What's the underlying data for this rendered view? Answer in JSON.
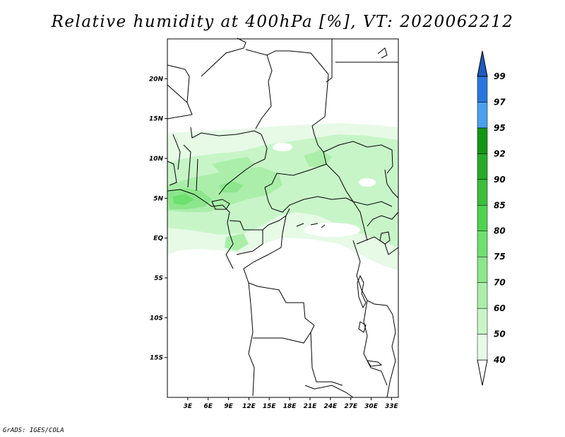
{
  "title": "Relative humidity at 400hPa [%], VT: 2020062212",
  "credit": "GrADS: IGES/COLA",
  "map": {
    "lon_range": [
      0,
      34
    ],
    "lat_range": [
      -20,
      25
    ],
    "lat_ticks": [
      {
        "lat": 20,
        "label": "20N"
      },
      {
        "lat": 15,
        "label": "15N"
      },
      {
        "lat": 10,
        "label": "10N"
      },
      {
        "lat": 5,
        "label": "5N"
      },
      {
        "lat": 0,
        "label": "EQ"
      },
      {
        "lat": -5,
        "label": "5S"
      },
      {
        "lat": -10,
        "label": "10S"
      },
      {
        "lat": -15,
        "label": "15S"
      }
    ],
    "lon_ticks": [
      {
        "lon": 3,
        "label": "3E"
      },
      {
        "lon": 6,
        "label": "6E"
      },
      {
        "lon": 9,
        "label": "9E"
      },
      {
        "lon": 12,
        "label": "12E"
      },
      {
        "lon": 15,
        "label": "15E"
      },
      {
        "lon": 18,
        "label": "18E"
      },
      {
        "lon": 21,
        "label": "21E"
      },
      {
        "lon": 24,
        "label": "24E"
      },
      {
        "lon": 27,
        "label": "27E"
      },
      {
        "lon": 30,
        "label": "30E"
      },
      {
        "lon": 33,
        "label": "33E"
      }
    ],
    "boundary_color": "#000000"
  },
  "colorbar": {
    "levels": [
      "40",
      "50",
      "60",
      "70",
      "75",
      "80",
      "85",
      "90",
      "92",
      "95",
      "97",
      "99"
    ],
    "colors": [
      "#e6fae6",
      "#c8f5c8",
      "#aaeeaa",
      "#8ce68c",
      "#6ee06e",
      "#50d250",
      "#3cbe3c",
      "#28aa28",
      "#149614",
      "#4aa0ee",
      "#2878dc",
      "#1e5abe"
    ]
  },
  "field": {
    "type": "contour-fill",
    "variable": "relative humidity",
    "level_hPa": 400,
    "bands": [
      {
        "level": 40,
        "region": "band 13N to 3S across Sahel and central Africa"
      },
      {
        "level": 50,
        "region": "core of band 4N to 10N"
      },
      {
        "level": 60,
        "region": "patches near 6N coast and 3N-8N interior"
      },
      {
        "level": 70,
        "region": "Gulf of Guinea coast near 4N-5N"
      },
      {
        "level": 75,
        "region": "small cores near 4N, 3E-8E"
      }
    ]
  }
}
